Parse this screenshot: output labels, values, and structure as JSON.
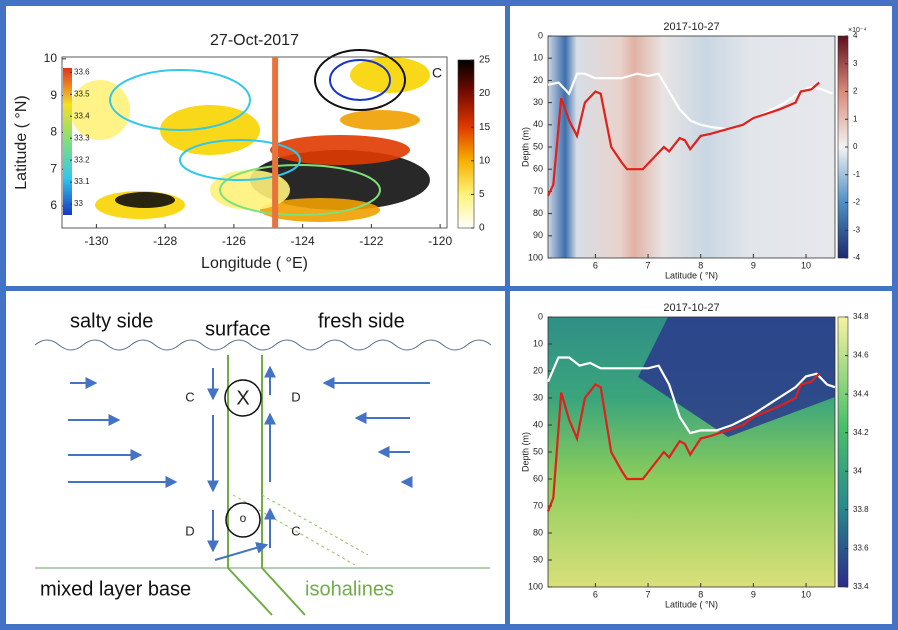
{
  "chart_data": [
    {
      "type": "contour",
      "title": "27-Oct-2017",
      "x_label": "Longitude ( °E)",
      "y_label": "Latitude ( °N)",
      "xlim": [
        -131,
        -119.8
      ],
      "xticks": [
        -130,
        -128,
        -126,
        -124,
        -122,
        -120
      ],
      "ylim": [
        5.4,
        10.05
      ],
      "yticks": [
        6,
        7,
        8,
        9,
        10
      ],
      "colorbar": {
        "lim": [
          0,
          25
        ],
        "ticks": [
          0,
          5,
          10,
          15,
          20,
          25
        ]
      },
      "contour_legend": {
        "lim": [
          32.95,
          33.62
        ],
        "ticks": [
          33,
          33.1,
          33.2,
          33.3,
          33.4,
          33.5,
          33.6
        ]
      },
      "section_line": {
        "x": -124.8,
        "color": "#e8743b"
      },
      "annotation": "C"
    },
    {
      "type": "line",
      "title": "2017-10-27",
      "x_label": "Latitude ( °N)",
      "y_label": "Depth (m)",
      "xlim": [
        5.1,
        10.55
      ],
      "xticks": [
        6,
        7,
        8,
        9,
        10
      ],
      "ylim": [
        100,
        0
      ],
      "yticks": [
        0,
        10,
        20,
        30,
        40,
        50,
        60,
        70,
        80,
        90,
        100
      ],
      "colorbar": {
        "lim": [
          -4,
          4
        ],
        "ticks": [
          -4,
          -3,
          -2,
          -1,
          0,
          1,
          2,
          3,
          4
        ],
        "label": "×10⁻⁴"
      },
      "series": [
        {
          "color": "#ffffff",
          "x": [
            5.1,
            5.3,
            5.5,
            5.65,
            5.8,
            6.0,
            6.2,
            6.5,
            6.8,
            7.0,
            7.2,
            7.4,
            7.6,
            7.8,
            8.0,
            8.2,
            8.5,
            8.8,
            9.2,
            9.6,
            9.9,
            10.1,
            10.3,
            10.5
          ],
          "values": [
            22,
            21,
            26,
            17,
            17,
            19,
            19,
            19,
            17,
            18,
            17,
            25,
            33,
            38,
            40,
            41,
            42,
            40,
            35,
            30,
            25,
            23,
            24,
            26
          ]
        },
        {
          "color": "#e0201b",
          "x": [
            5.1,
            5.2,
            5.35,
            5.5,
            5.65,
            5.8,
            6.0,
            6.1,
            6.3,
            6.5,
            6.6,
            6.9,
            7.1,
            7.3,
            7.4,
            7.6,
            7.7,
            7.8,
            8.0,
            8.2,
            8.5,
            8.8,
            9.0,
            9.5,
            9.8,
            9.9,
            10.1,
            10.25
          ],
          "values": [
            72,
            67,
            28,
            38,
            45,
            30,
            25,
            26,
            50,
            57,
            60,
            60,
            55,
            50,
            52,
            46,
            47,
            51,
            45,
            44,
            42,
            40,
            37,
            33,
            30,
            25,
            24,
            21
          ]
        }
      ]
    },
    {
      "type": "line",
      "title": "2017-10-27",
      "x_label": "Latitude ( °N)",
      "y_label": "Depth (m)",
      "xlim": [
        5.1,
        10.55
      ],
      "xticks": [
        6,
        7,
        8,
        9,
        10
      ],
      "ylim": [
        100,
        0
      ],
      "yticks": [
        0,
        10,
        20,
        30,
        40,
        50,
        60,
        70,
        80,
        90,
        100
      ],
      "colorbar": {
        "lim": [
          33.4,
          34.8
        ],
        "ticks": [
          33.4,
          33.6,
          33.8,
          34,
          34.2,
          34.4,
          34.6,
          34.8
        ]
      },
      "series": [
        {
          "color": "#ffffff",
          "x": [
            5.1,
            5.3,
            5.5,
            5.7,
            5.9,
            6.1,
            6.4,
            6.7,
            7.0,
            7.2,
            7.4,
            7.6,
            7.8,
            8.0,
            8.3,
            8.6,
            9.0,
            9.4,
            9.8,
            10.0,
            10.2,
            10.4,
            10.55
          ],
          "values": [
            24,
            15,
            15,
            18,
            17,
            19,
            19,
            19,
            19,
            18,
            25,
            37,
            43,
            42,
            42,
            40,
            36,
            31,
            26,
            22,
            21,
            25,
            26
          ]
        },
        {
          "color": "#e0201b",
          "x": [
            5.1,
            5.2,
            5.35,
            5.5,
            5.65,
            5.8,
            6.0,
            6.1,
            6.3,
            6.5,
            6.6,
            6.9,
            7.1,
            7.3,
            7.4,
            7.6,
            7.7,
            7.8,
            8.0,
            8.2,
            8.5,
            8.8,
            9.0,
            9.5,
            9.8,
            9.9,
            10.1,
            10.25
          ],
          "values": [
            72,
            67,
            28,
            38,
            45,
            30,
            25,
            26,
            50,
            57,
            60,
            60,
            55,
            50,
            52,
            46,
            47,
            51,
            45,
            44,
            42,
            40,
            37,
            33,
            30,
            25,
            24,
            21
          ]
        }
      ]
    }
  ],
  "diagram": {
    "salty": "salty side",
    "surface": "surface",
    "fresh": "fresh side",
    "top_left": "C",
    "top_center": "X",
    "top_right": "D",
    "bottom_left": "D",
    "bottom_center": "o",
    "bottom_right": "C",
    "base": "mixed layer base",
    "isohalines": "isohalines"
  }
}
